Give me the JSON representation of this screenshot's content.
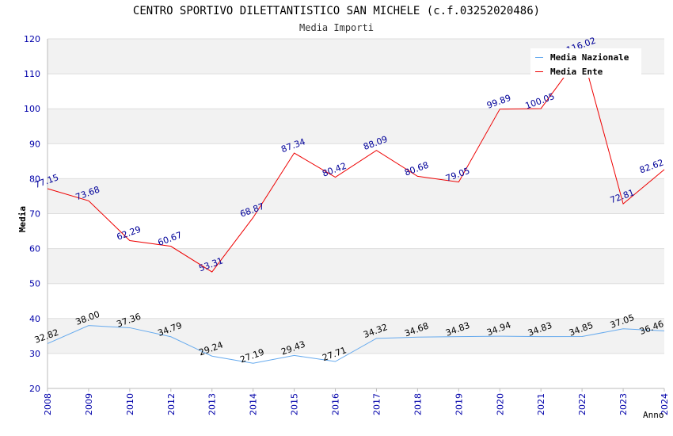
{
  "header": {
    "title": "CENTRO SPORTIVO DILETTANTISTICO SAN MICHELE (c.f.03252020486)",
    "subtitle": "Media Importi"
  },
  "chart_data": {
    "type": "line",
    "title": "CENTRO SPORTIVO DILETTANTISTICO SAN MICHELE (c.f.03252020486)",
    "subtitle": "Media Importi",
    "xlabel": "Anno",
    "ylabel": "Media",
    "ylim": [
      20,
      120
    ],
    "yticks": [
      20,
      30,
      40,
      50,
      60,
      70,
      80,
      90,
      100,
      110,
      120
    ],
    "grid": true,
    "legend_position": "top-right",
    "categories": [
      "2008",
      "2009",
      "2010",
      "2012",
      "2013",
      "2014",
      "2015",
      "2016",
      "2017",
      "2018",
      "2019",
      "2020",
      "2021",
      "2022",
      "2023",
      "2024"
    ],
    "series": [
      {
        "name": "Media Nazionale",
        "color": "#66aaee",
        "label_color": "#000000",
        "values": [
          32.82,
          38.0,
          37.36,
          34.79,
          29.24,
          27.19,
          29.43,
          27.71,
          34.32,
          34.68,
          34.83,
          34.94,
          34.83,
          34.85,
          37.05,
          36.46
        ],
        "labels": [
          "32.82",
          "38.00",
          "37.36",
          "34.79",
          "29.24",
          "27.19",
          "29.43",
          "27.71",
          "34.32",
          "34.68",
          "34.83",
          "34.94",
          "34.83",
          "34.85",
          "37.05",
          "36.46"
        ]
      },
      {
        "name": "Media Ente",
        "color": "#ee0000",
        "label_color": "#000099",
        "values": [
          77.15,
          73.68,
          62.29,
          60.67,
          53.31,
          68.87,
          87.34,
          80.42,
          88.09,
          80.68,
          79.05,
          99.89,
          100.05,
          116.02,
          72.81,
          82.62
        ],
        "labels": [
          "77.15",
          "73.68",
          "62.29",
          "60.67",
          "53.31",
          "68.87",
          "87.34",
          "80.42",
          "88.09",
          "80.68",
          "79.05",
          "99.89",
          "100.05",
          "116.02",
          "72.81",
          "82.62"
        ]
      }
    ]
  }
}
